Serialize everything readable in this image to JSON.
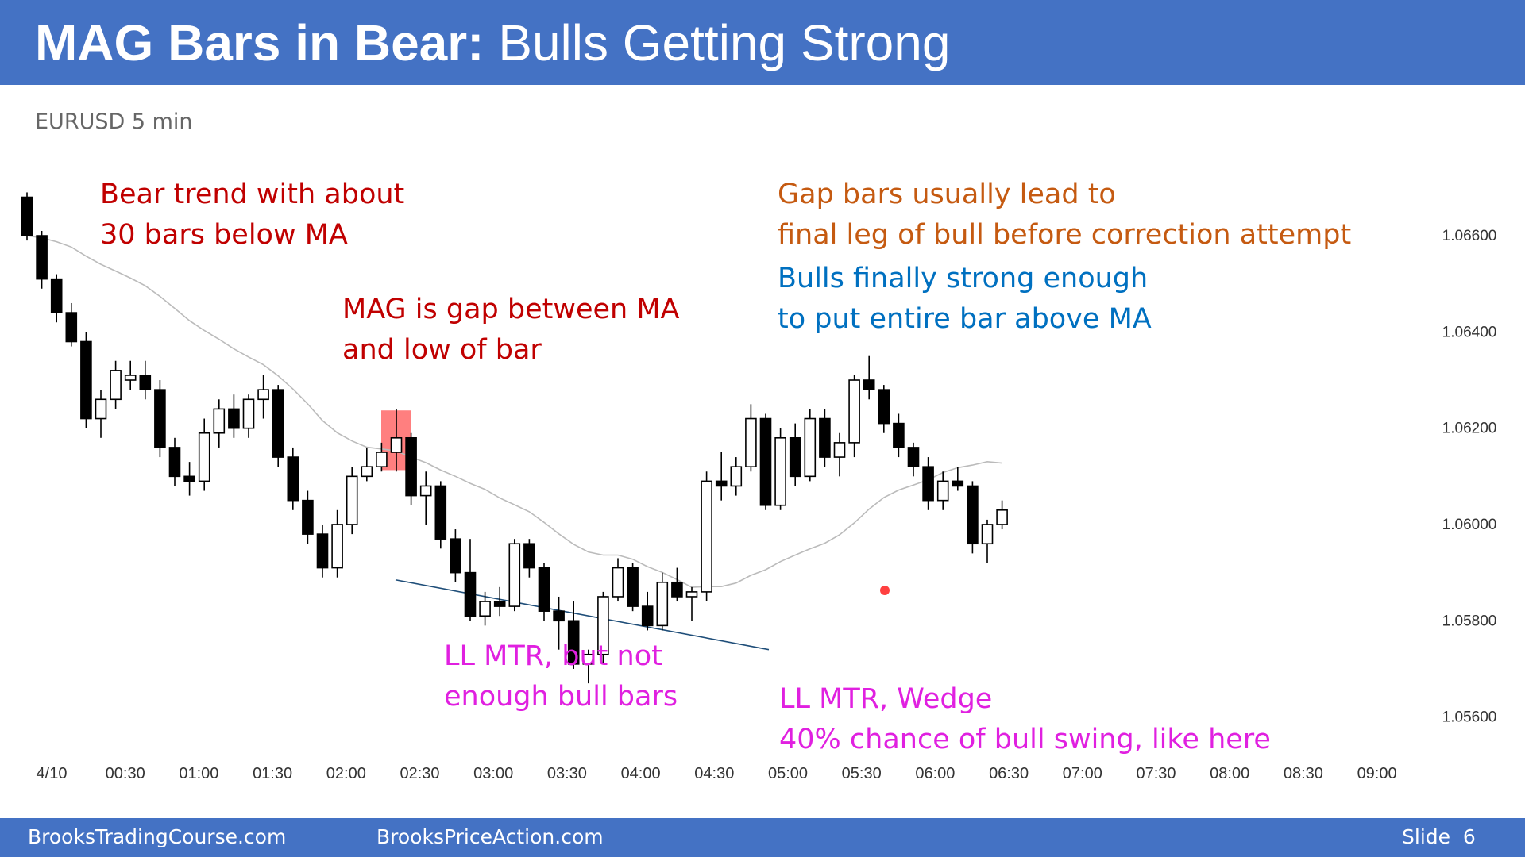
{
  "header": {
    "title_bold": "MAG Bars in Bear:",
    "title_rest": "Bulls Getting Strong"
  },
  "subtitle": "EURUSD 5 min",
  "annotations": {
    "bear_trend": [
      "Bear trend with about",
      "30 bars below MA"
    ],
    "mag_gap": [
      "MAG is gap between MA",
      "and low of bar"
    ],
    "gap_bars": [
      "Gap bars usually lead to",
      "final leg of bull before correction attempt"
    ],
    "bulls_strong": [
      "Bulls finally strong enough",
      "to put entire bar above MA"
    ],
    "ll_mtr_1": [
      "LL MTR, but not",
      "enough bull bars"
    ],
    "ll_mtr_2": [
      "LL MTR, Wedge",
      "40% chance of bull swing, like here"
    ]
  },
  "colors": {
    "header_bg": "#4472c4",
    "red_text": "#c00000",
    "orange_text": "#c55a11",
    "blue_text": "#0070c0",
    "magenta_text": "#e020e0",
    "bull_candle": "#ffffff",
    "bear_candle": "#000000",
    "ma_line": "#bbbbbb",
    "highlight": "#ff0000",
    "trendline": "#1f4e79"
  },
  "footer": {
    "left": "BrooksTradingCourse.com",
    "center": "BrooksPriceAction.com",
    "slide_label": "Slide",
    "slide_number": "6"
  },
  "chart_data": {
    "type": "candlestick",
    "symbol": "EURUSD",
    "timeframe": "5 min",
    "x_tick_labels": [
      "4/10",
      "00:30",
      "01:00",
      "01:30",
      "02:00",
      "02:30",
      "03:00",
      "03:30",
      "04:00",
      "04:30",
      "05:00",
      "05:30",
      "06:00",
      "06:30",
      "07:00",
      "07:30",
      "08:00",
      "08:30",
      "09:00"
    ],
    "y_tick_labels": [
      "1.06600",
      "1.06400",
      "1.06200",
      "1.06000",
      "1.05800",
      "1.05600"
    ],
    "y_tick_values": [
      1.066,
      1.064,
      1.062,
      1.06,
      1.058,
      1.056
    ],
    "y_range": [
      1.0554,
      1.0676
    ],
    "x_range": [
      0,
      6
    ],
    "ma_type": "moving average",
    "highlighted_bar_index": 25,
    "highlighted_bar_low": 1.06113,
    "highlighted_bar_high": 1.06237,
    "trendline": {
      "start": [
        2.0,
        1.05885
      ],
      "end": [
        4.35,
        1.0574
      ]
    },
    "candles": [
      {
        "o": 1.0668,
        "h": 1.0669,
        "l": 1.0659,
        "c": 1.066
      },
      {
        "o": 1.066,
        "h": 1.0661,
        "l": 1.0649,
        "c": 1.0651
      },
      {
        "o": 1.0651,
        "h": 1.0652,
        "l": 1.0642,
        "c": 1.0644
      },
      {
        "o": 1.0644,
        "h": 1.0646,
        "l": 1.0637,
        "c": 1.0638
      },
      {
        "o": 1.0638,
        "h": 1.064,
        "l": 1.062,
        "c": 1.0622
      },
      {
        "o": 1.0622,
        "h": 1.0628,
        "l": 1.0618,
        "c": 1.0626
      },
      {
        "o": 1.0626,
        "h": 1.0634,
        "l": 1.0624,
        "c": 1.0632
      },
      {
        "o": 1.063,
        "h": 1.0634,
        "l": 1.0628,
        "c": 1.0631
      },
      {
        "o": 1.0631,
        "h": 1.0634,
        "l": 1.0626,
        "c": 1.0628
      },
      {
        "o": 1.0628,
        "h": 1.063,
        "l": 1.0614,
        "c": 1.0616
      },
      {
        "o": 1.0616,
        "h": 1.0618,
        "l": 1.0608,
        "c": 1.061
      },
      {
        "o": 1.061,
        "h": 1.0613,
        "l": 1.0606,
        "c": 1.0609
      },
      {
        "o": 1.0609,
        "h": 1.0622,
        "l": 1.0607,
        "c": 1.0619
      },
      {
        "o": 1.0619,
        "h": 1.0626,
        "l": 1.0616,
        "c": 1.0624
      },
      {
        "o": 1.0624,
        "h": 1.0627,
        "l": 1.0618,
        "c": 1.062
      },
      {
        "o": 1.062,
        "h": 1.0627,
        "l": 1.0618,
        "c": 1.0626
      },
      {
        "o": 1.0626,
        "h": 1.0631,
        "l": 1.0622,
        "c": 1.0628
      },
      {
        "o": 1.0628,
        "h": 1.0629,
        "l": 1.0612,
        "c": 1.0614
      },
      {
        "o": 1.0614,
        "h": 1.0616,
        "l": 1.0603,
        "c": 1.0605
      },
      {
        "o": 1.0605,
        "h": 1.0607,
        "l": 1.0596,
        "c": 1.0598
      },
      {
        "o": 1.0598,
        "h": 1.06,
        "l": 1.0589,
        "c": 1.0591
      },
      {
        "o": 1.0591,
        "h": 1.0603,
        "l": 1.0589,
        "c": 1.06
      },
      {
        "o": 1.06,
        "h": 1.0612,
        "l": 1.0598,
        "c": 1.061
      },
      {
        "o": 1.061,
        "h": 1.0616,
        "l": 1.0609,
        "c": 1.0612
      },
      {
        "o": 1.0612,
        "h": 1.0617,
        "l": 1.0611,
        "c": 1.0615
      },
      {
        "o": 1.0615,
        "h": 1.0624,
        "l": 1.0611,
        "c": 1.0618
      },
      {
        "o": 1.0618,
        "h": 1.0619,
        "l": 1.0604,
        "c": 1.0606
      },
      {
        "o": 1.0606,
        "h": 1.0611,
        "l": 1.06,
        "c": 1.0608
      },
      {
        "o": 1.0608,
        "h": 1.0609,
        "l": 1.0595,
        "c": 1.0597
      },
      {
        "o": 1.0597,
        "h": 1.0599,
        "l": 1.0588,
        "c": 1.059
      },
      {
        "o": 1.059,
        "h": 1.0597,
        "l": 1.058,
        "c": 1.0581
      },
      {
        "o": 1.0581,
        "h": 1.0586,
        "l": 1.0579,
        "c": 1.0584
      },
      {
        "o": 1.0584,
        "h": 1.0587,
        "l": 1.0581,
        "c": 1.0583
      },
      {
        "o": 1.0583,
        "h": 1.0597,
        "l": 1.0582,
        "c": 1.0596
      },
      {
        "o": 1.0596,
        "h": 1.0597,
        "l": 1.0589,
        "c": 1.0591
      },
      {
        "o": 1.0591,
        "h": 1.0592,
        "l": 1.058,
        "c": 1.0582
      },
      {
        "o": 1.0582,
        "h": 1.0585,
        "l": 1.0574,
        "c": 1.058
      },
      {
        "o": 1.058,
        "h": 1.0584,
        "l": 1.057,
        "c": 1.0571
      },
      {
        "o": 1.0571,
        "h": 1.0574,
        "l": 1.0567,
        "c": 1.0573
      },
      {
        "o": 1.0573,
        "h": 1.0586,
        "l": 1.0571,
        "c": 1.0585
      },
      {
        "o": 1.0585,
        "h": 1.0593,
        "l": 1.0584,
        "c": 1.0591
      },
      {
        "o": 1.0591,
        "h": 1.0592,
        "l": 1.0582,
        "c": 1.0583
      },
      {
        "o": 1.0583,
        "h": 1.0586,
        "l": 1.0578,
        "c": 1.0579
      },
      {
        "o": 1.0579,
        "h": 1.059,
        "l": 1.0578,
        "c": 1.0588
      },
      {
        "o": 1.0588,
        "h": 1.0591,
        "l": 1.0584,
        "c": 1.0585
      },
      {
        "o": 1.0585,
        "h": 1.0587,
        "l": 1.058,
        "c": 1.0586
      },
      {
        "o": 1.0586,
        "h": 1.0611,
        "l": 1.0584,
        "c": 1.0609
      },
      {
        "o": 1.0609,
        "h": 1.0615,
        "l": 1.0605,
        "c": 1.0608
      },
      {
        "o": 1.0608,
        "h": 1.0614,
        "l": 1.0606,
        "c": 1.0612
      },
      {
        "o": 1.0612,
        "h": 1.0625,
        "l": 1.0611,
        "c": 1.0622
      },
      {
        "o": 1.0622,
        "h": 1.0623,
        "l": 1.0603,
        "c": 1.0604
      },
      {
        "o": 1.0604,
        "h": 1.062,
        "l": 1.0603,
        "c": 1.0618
      },
      {
        "o": 1.0618,
        "h": 1.0621,
        "l": 1.0608,
        "c": 1.061
      },
      {
        "o": 1.061,
        "h": 1.0624,
        "l": 1.0609,
        "c": 1.0622
      },
      {
        "o": 1.0622,
        "h": 1.0624,
        "l": 1.0612,
        "c": 1.0614
      },
      {
        "o": 1.0614,
        "h": 1.0619,
        "l": 1.061,
        "c": 1.0617
      },
      {
        "o": 1.0617,
        "h": 1.0631,
        "l": 1.0614,
        "c": 1.063
      },
      {
        "o": 1.063,
        "h": 1.0635,
        "l": 1.0626,
        "c": 1.0628
      },
      {
        "o": 1.0628,
        "h": 1.0629,
        "l": 1.0619,
        "c": 1.0621
      },
      {
        "o": 1.0621,
        "h": 1.0623,
        "l": 1.0614,
        "c": 1.0616
      },
      {
        "o": 1.0616,
        "h": 1.0617,
        "l": 1.061,
        "c": 1.0612
      },
      {
        "o": 1.0612,
        "h": 1.0614,
        "l": 1.0603,
        "c": 1.0605
      },
      {
        "o": 1.0605,
        "h": 1.0611,
        "l": 1.0603,
        "c": 1.0609
      },
      {
        "o": 1.0609,
        "h": 1.0612,
        "l": 1.0607,
        "c": 1.0608
      },
      {
        "o": 1.0608,
        "h": 1.0609,
        "l": 1.0594,
        "c": 1.0596
      },
      {
        "o": 1.0596,
        "h": 1.0601,
        "l": 1.0592,
        "c": 1.06
      },
      {
        "o": 1.06,
        "h": 1.0605,
        "l": 1.0599,
        "c": 1.0603
      }
    ]
  }
}
